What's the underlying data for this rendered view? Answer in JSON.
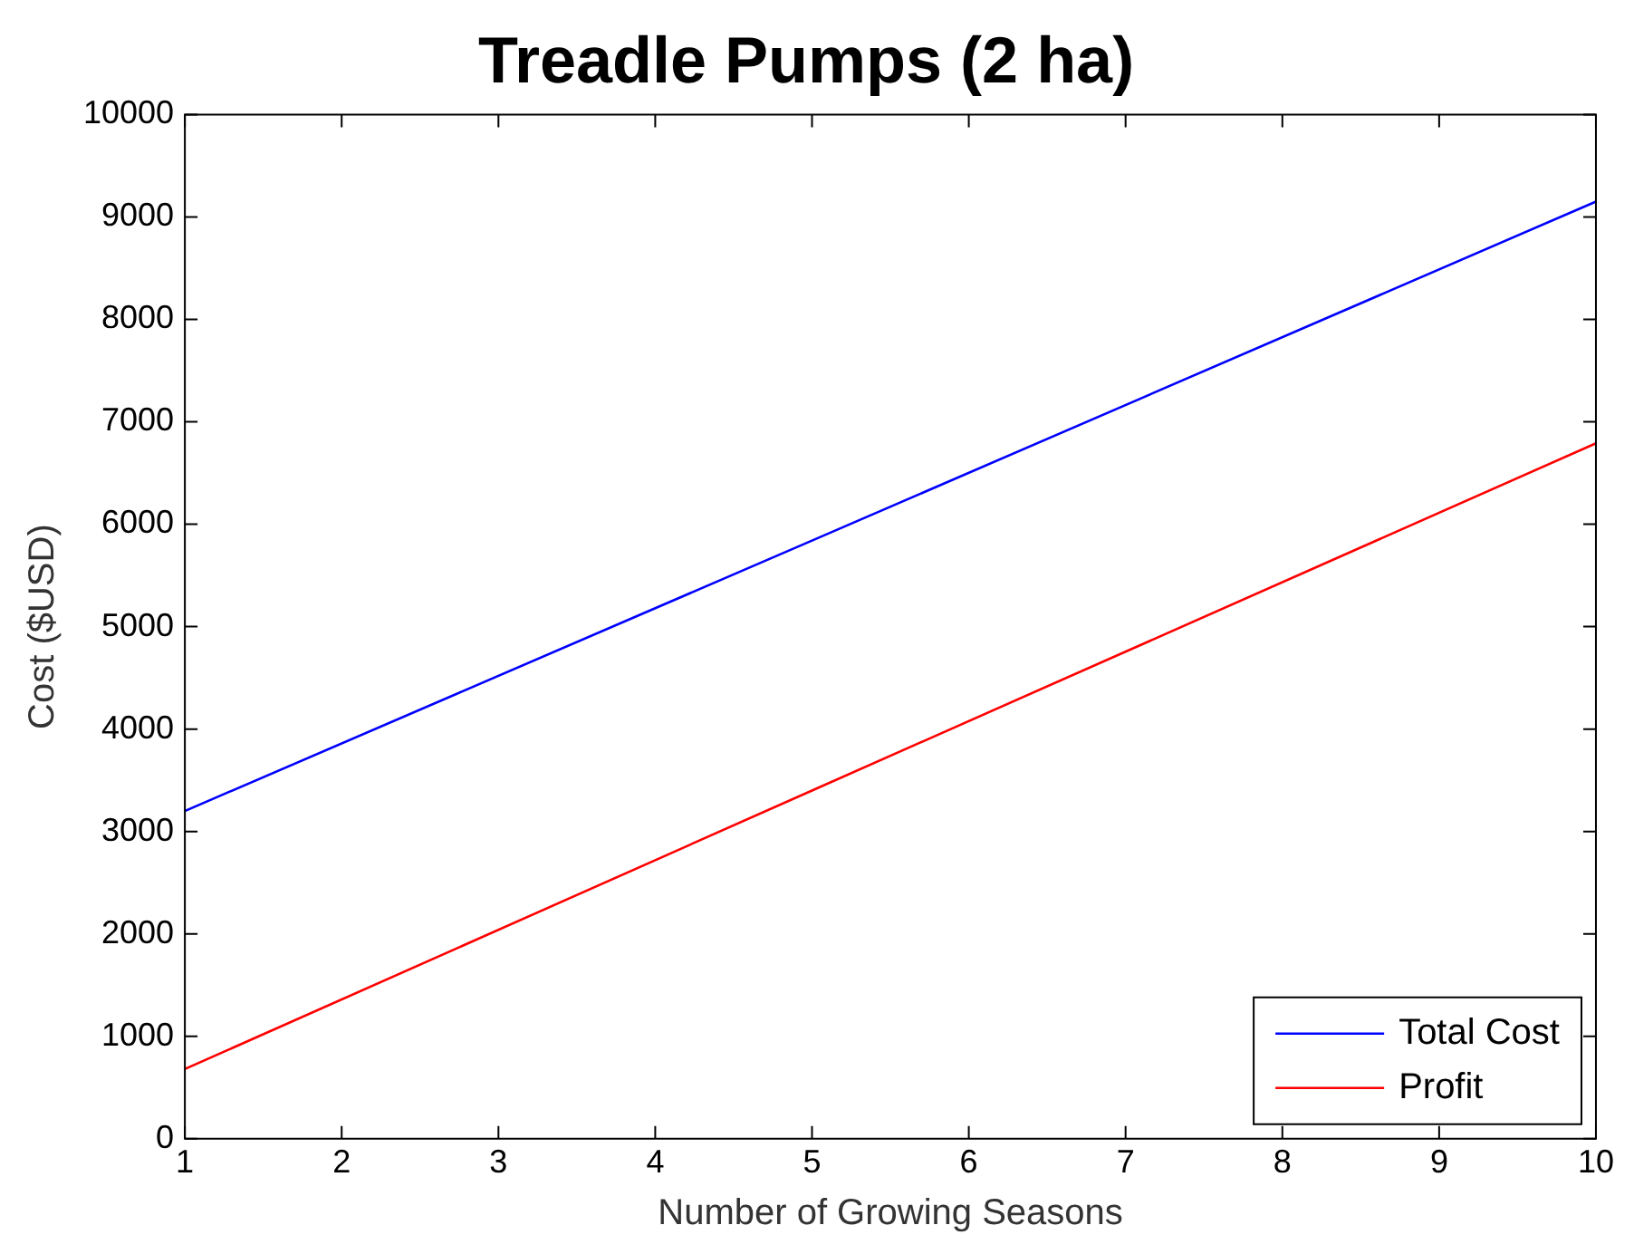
{
  "chart_data": {
    "type": "line",
    "title": "Treadle Pumps (2 ha)",
    "xlabel": "Number of Growing Seasons",
    "ylabel": "Cost ($USD)",
    "x": [
      1,
      5,
      10
    ],
    "series": [
      {
        "name": "Total Cost",
        "color": "#0000ff",
        "values": [
          3200,
          5840,
          9150
        ]
      },
      {
        "name": "Profit",
        "color": "#ff0000",
        "values": [
          680,
          3400,
          6790
        ]
      }
    ],
    "xlim": [
      1,
      10
    ],
    "xticks": [
      1,
      2,
      3,
      4,
      5,
      6,
      7,
      8,
      9,
      10
    ],
    "ylim": [
      0,
      10000
    ],
    "yticks": [
      0,
      1000,
      2000,
      3000,
      4000,
      5000,
      6000,
      7000,
      8000,
      9000,
      10000
    ],
    "grid": false,
    "legend": "bottom right",
    "marker": "none",
    "line_style": "solid"
  }
}
